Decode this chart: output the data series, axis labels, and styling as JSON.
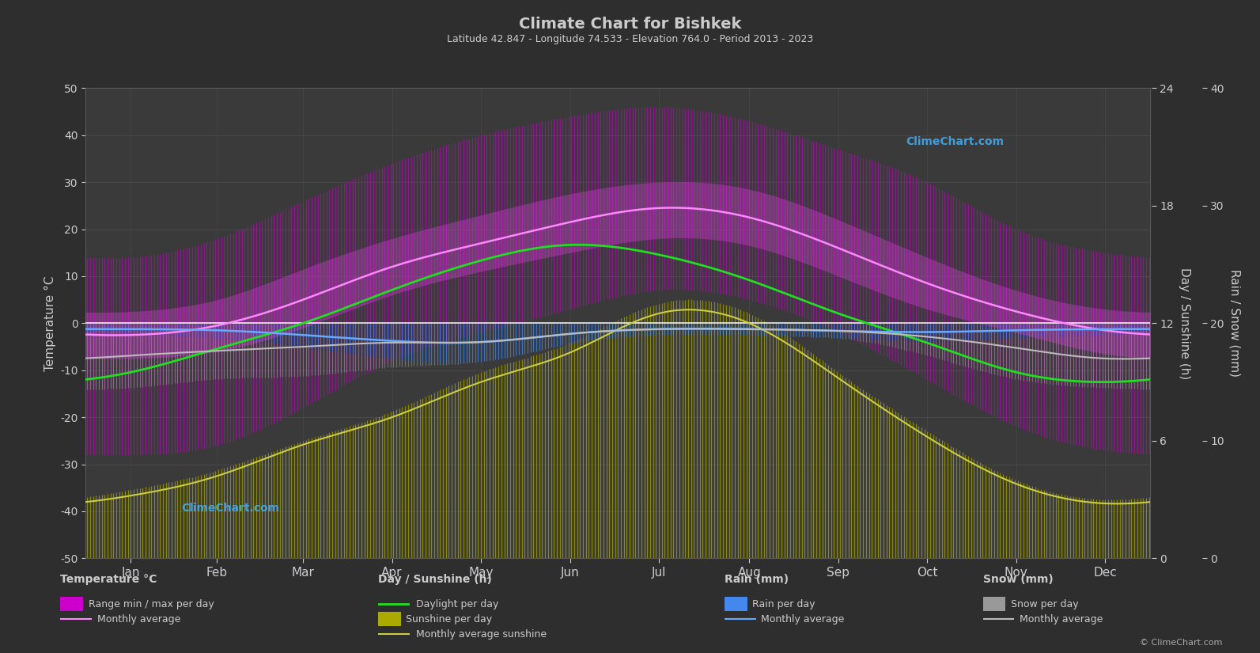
{
  "title": "Climate Chart for Bishkek",
  "subtitle": "Latitude 42.847 - Longitude 74.533 - Elevation 764.0 - Period 2013 - 2023",
  "bg_color": "#2e2e2e",
  "plot_bg_color": "#3a3a3a",
  "grid_color": "#5a5a5a",
  "text_color": "#cccccc",
  "months": [
    "Jan",
    "Feb",
    "Mar",
    "Apr",
    "May",
    "Jun",
    "Jul",
    "Aug",
    "Sep",
    "Oct",
    "Nov",
    "Dec"
  ],
  "days_per_month": [
    31,
    28,
    31,
    30,
    31,
    30,
    31,
    31,
    30,
    31,
    30,
    31
  ],
  "temp_ylim": [
    -50,
    50
  ],
  "temp_abs_max": [
    14.0,
    18.0,
    26.0,
    34.0,
    40.0,
    44.0,
    46.0,
    43.0,
    37.0,
    30.0,
    20.0,
    15.0
  ],
  "temp_abs_min": [
    -28.0,
    -26.0,
    -18.0,
    -8.0,
    -2.0,
    3.0,
    7.0,
    5.0,
    -2.0,
    -12.0,
    -22.0,
    -27.0
  ],
  "temp_avg_max": [
    2.5,
    5.0,
    11.5,
    18.0,
    23.0,
    27.5,
    30.0,
    28.5,
    22.0,
    14.0,
    7.0,
    3.0
  ],
  "temp_avg_min": [
    -7.5,
    -6.0,
    -1.0,
    6.0,
    11.0,
    15.0,
    18.0,
    16.5,
    10.0,
    3.0,
    -2.0,
    -6.5
  ],
  "temp_monthly_avg": [
    -2.5,
    -0.5,
    5.0,
    12.0,
    17.0,
    21.5,
    24.5,
    22.5,
    16.0,
    8.5,
    2.5,
    -1.5
  ],
  "daylight_h": [
    9.5,
    10.7,
    12.0,
    13.7,
    15.2,
    16.0,
    15.5,
    14.2,
    12.5,
    11.0,
    9.5,
    9.0
  ],
  "sunshine_h": [
    3.5,
    4.5,
    6.0,
    7.5,
    9.5,
    11.0,
    13.0,
    12.5,
    9.5,
    6.5,
    4.0,
    3.0
  ],
  "sunshine_monthly_avg": [
    3.2,
    4.2,
    5.8,
    7.2,
    9.0,
    10.5,
    12.5,
    12.0,
    9.2,
    6.2,
    3.8,
    2.8
  ],
  "rain_mm": [
    2.0,
    2.5,
    4.0,
    6.0,
    6.5,
    3.5,
    2.0,
    2.0,
    2.5,
    3.0,
    2.5,
    2.0
  ],
  "rain_monthly_avg_mm": [
    1.0,
    1.2,
    2.0,
    3.0,
    3.2,
    1.8,
    1.0,
    1.0,
    1.3,
    1.5,
    1.2,
    1.0
  ],
  "snow_mm": [
    9.0,
    7.0,
    5.0,
    1.5,
    0.0,
    0.0,
    0.0,
    0.0,
    0.0,
    2.5,
    7.0,
    9.0
  ],
  "snow_monthly_avg_mm": [
    4.5,
    3.5,
    2.0,
    0.3,
    0.0,
    0.0,
    0.0,
    0.0,
    0.0,
    0.8,
    3.0,
    5.0
  ],
  "color_daylight": "#22dd22",
  "color_sunshine_bar": "#aaaa00",
  "color_sunshine_avg": "#cccc44",
  "color_temp_bar_mag": "#cc00cc",
  "color_temp_avg_pink": "#ff88ff",
  "color_rain_bar": "#4488ee",
  "color_rain_avg": "#66aaff",
  "color_snow_bar": "#999999",
  "color_snow_avg": "#bbbbbb",
  "color_zero_line": "#ffffff",
  "color_watermark": "#44aaee",
  "rain_scale": 40,
  "sun_scale": 24
}
